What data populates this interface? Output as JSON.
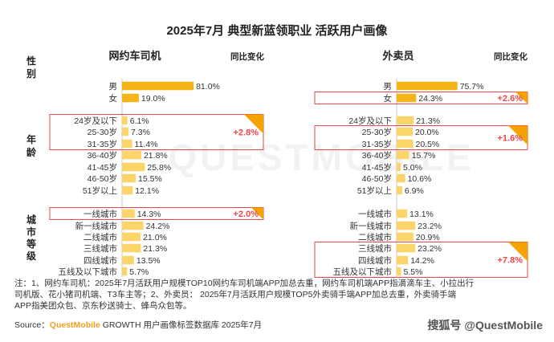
{
  "title": "2025年7月 典型新蓝领职业 活跃用户画像",
  "colors": {
    "bar": "#f5b418",
    "bar_light": "#fbd56a",
    "box": "#e8474b",
    "up": "#e8474b",
    "axis": "#c9c9c9",
    "tri": "#f5a300"
  },
  "panels": [
    {
      "title": "网约车司机",
      "change_header": "同比变化"
    },
    {
      "title": "外卖员",
      "change_header": "同比变化"
    }
  ],
  "groups": [
    {
      "label": "性别",
      "rows": 2
    },
    {
      "label": "年龄",
      "rows": 7
    },
    {
      "label": "城市等级",
      "rows": 6
    }
  ],
  "chart_data": {
    "type": "bar",
    "orientation": "horizontal",
    "title": "2025年7月 典型新蓝领职业 活跃用户画像",
    "categories": [
      "男",
      "女",
      "24岁及以下",
      "25-30岁",
      "31-35岁",
      "36-40岁",
      "41-45岁",
      "46-50岁",
      "51岁以上",
      "一线城市",
      "新一线城市",
      "二线城市",
      "三线城市",
      "四线城市",
      "五线及以下城市"
    ],
    "series": [
      {
        "name": "网约车司机",
        "values": [
          81.0,
          19.0,
          6.1,
          7.3,
          11.4,
          21.8,
          25.8,
          15.5,
          12.1,
          14.3,
          24.2,
          21.0,
          21.3,
          13.5,
          5.7
        ],
        "value_labels": [
          "81.0%",
          "19.0%",
          "6.1%",
          "7.3%",
          "11.4%",
          "21.8%",
          "25.8%",
          "15.5%",
          "12.1%",
          "14.3%",
          "24.2%",
          "21.0%",
          "21.3%",
          "13.5%",
          "5.7%"
        ]
      },
      {
        "name": "外卖员",
        "values": [
          75.7,
          24.3,
          21.3,
          20.0,
          20.5,
          15.7,
          5.0,
          10.6,
          6.9,
          13.1,
          23.2,
          20.9,
          23.2,
          14.2,
          5.5
        ],
        "value_labels": [
          "75.7%",
          "24.3%",
          "21.3%",
          "20.0%",
          "20.5%",
          "15.7%",
          "5.0%",
          "10.6%",
          "6.9%",
          "13.1%",
          "23.2%",
          "20.9%",
          "23.2%",
          "14.2%",
          "5.5%"
        ]
      }
    ],
    "highlights": [
      {
        "panel": 0,
        "from": "24岁及以下",
        "to": "31-35岁",
        "change": "+2.8%"
      },
      {
        "panel": 0,
        "from": "一线城市",
        "to": "一线城市",
        "change": "+2.0%"
      },
      {
        "panel": 1,
        "from": "女",
        "to": "女",
        "change": "+2.6%"
      },
      {
        "panel": 1,
        "from": "25-30岁",
        "to": "31-35岁",
        "change": "+1.6%"
      },
      {
        "panel": 1,
        "from": "三线城市",
        "to": "五线及以下城市",
        "change": "+7.8%"
      }
    ]
  },
  "footnote": {
    "line1": "注：1、网约车司机：2025年7月活跃用户规模TOP10网约车司机端APP加总去重，网约车司机端APP指滴滴车主、小拉出行",
    "line2": "司机版、花小猪司机端、T3车主等；2、外卖员：  2025年7月活跃用户规模TOP5外卖骑手端APP加总去重，外卖骑手端",
    "line3": "APP指美团众包、京东秒送骑士、蜂鸟众包等。"
  },
  "source": {
    "prefix": "Source：",
    "brand": "QuestMobile",
    "rest": " GROWTH 用户画像标签数据库 2025年7月"
  },
  "watermark": {
    "text": "QUESTMOBILE"
  },
  "brand_footer": "搜狐号 @QuestMobile"
}
